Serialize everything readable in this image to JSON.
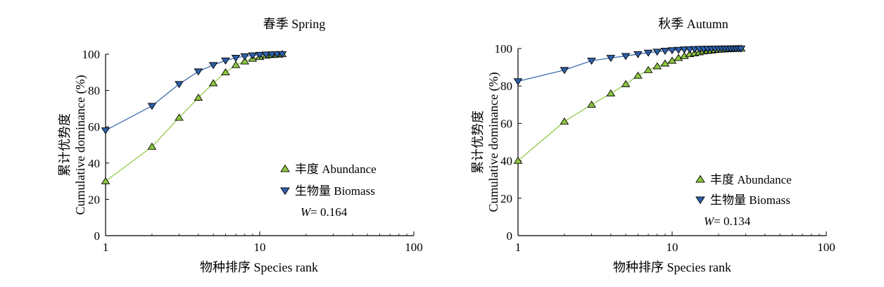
{
  "colors": {
    "abundance_fill": "#8dc63f",
    "abundance_line": "#8dc63f",
    "biomass_fill": "#2e5fa8",
    "biomass_line": "#2e5fa8",
    "axis": "#000000"
  },
  "chart_data": [
    {
      "type": "line",
      "title": "春季 Spring",
      "xlabel": "物种排序 Species rank",
      "ylabel_cn": "累计优势度",
      "ylabel_en": "Cumulative dominance (%)",
      "xscale": "log",
      "xlim": [
        1,
        100
      ],
      "ylim": [
        0,
        100
      ],
      "xticks": [
        1,
        10,
        100
      ],
      "xtick_labels": [
        "1",
        "10",
        "100"
      ],
      "yticks": [
        0,
        20,
        40,
        60,
        80,
        100
      ],
      "ytick_labels": [
        "0",
        "20",
        "40",
        "60",
        "80",
        "100"
      ],
      "grid": false,
      "legend_position": "bottom-right",
      "stat": {
        "symbol": "W",
        "value": "= 0.164"
      },
      "series": [
        {
          "name": "丰度 Abundance",
          "marker": "triangle-up",
          "x": [
            1,
            2,
            3,
            4,
            5,
            6,
            7,
            8,
            9,
            10,
            11,
            12,
            13,
            14
          ],
          "y": [
            30,
            49,
            65,
            76,
            84,
            90,
            94,
            96,
            97.5,
            98.5,
            99.2,
            99.6,
            99.8,
            100
          ]
        },
        {
          "name": "生物量 Biomass",
          "marker": "triangle-down",
          "x": [
            1,
            2,
            3,
            4,
            5,
            6,
            7,
            8,
            9,
            10,
            11,
            12,
            13,
            14
          ],
          "y": [
            58,
            71.5,
            83.5,
            90.5,
            94,
            96.5,
            98,
            98.8,
            99.3,
            99.6,
            99.8,
            99.9,
            100,
            100
          ]
        }
      ]
    },
    {
      "type": "line",
      "title": "秋季 Autumn",
      "xlabel": "物种排序 Species rank",
      "ylabel_cn": "累计优势度",
      "ylabel_en": "Cumulative dominance (%)",
      "xscale": "log",
      "xlim": [
        1,
        100
      ],
      "ylim": [
        0,
        100
      ],
      "xticks": [
        1,
        10,
        100
      ],
      "xtick_labels": [
        "1",
        "10",
        "100"
      ],
      "yticks": [
        0,
        20,
        40,
        60,
        80,
        100
      ],
      "ytick_labels": [
        "0",
        "20",
        "40",
        "60",
        "80",
        "100"
      ],
      "grid": false,
      "legend_position": "bottom-right",
      "stat": {
        "symbol": "W",
        "value": "= 0.134"
      },
      "series": [
        {
          "name": "丰度 Abundance",
          "marker": "triangle-up",
          "x": [
            1,
            2,
            3,
            4,
            5,
            6,
            7,
            8,
            9,
            10,
            11,
            12,
            13,
            14,
            15,
            16,
            17,
            18,
            19,
            20,
            21,
            22,
            23,
            24,
            25,
            26,
            27,
            28
          ],
          "y": [
            40,
            61,
            70,
            76,
            81,
            85.5,
            88.5,
            90.5,
            92,
            93.5,
            95,
            96,
            97,
            97.5,
            98,
            98.5,
            98.8,
            99,
            99.2,
            99.4,
            99.5,
            99.6,
            99.7,
            99.8,
            99.9,
            99.9,
            100,
            100
          ]
        },
        {
          "name": "生物量 Biomass",
          "marker": "triangle-down",
          "x": [
            1,
            2,
            3,
            4,
            5,
            6,
            7,
            8,
            9,
            10,
            11,
            12,
            13,
            14,
            15,
            16,
            17,
            18,
            19,
            20,
            21,
            22,
            23,
            24,
            25,
            26,
            27,
            28
          ],
          "y": [
            82.5,
            88.5,
            93.5,
            95,
            96,
            97,
            97.8,
            98.3,
            98.8,
            99.1,
            99.3,
            99.5,
            99.6,
            99.7,
            99.8,
            99.8,
            99.9,
            99.9,
            99.9,
            100,
            100,
            100,
            100,
            100,
            100,
            100,
            100,
            100
          ]
        }
      ]
    }
  ]
}
